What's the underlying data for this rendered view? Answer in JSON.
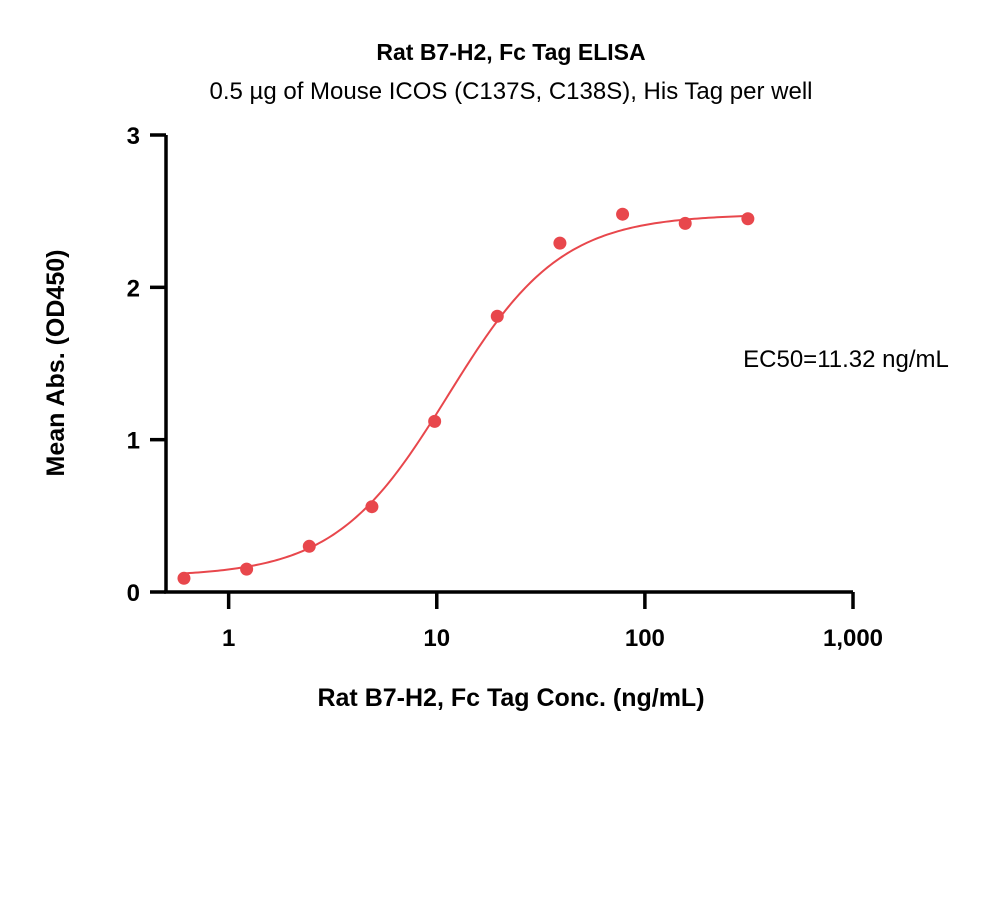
{
  "chart_data": {
    "type": "scatter",
    "title": "Rat B7-H2, Fc Tag ELISA",
    "subtitle": "0.5 µg of Mouse ICOS (C137S, C138S), His Tag per well",
    "xlabel": "Rat B7-H2, Fc Tag Conc. (ng/mL)",
    "ylabel": "Mean Abs. (OD450)",
    "x_scale": "log",
    "xlim": [
      0.5,
      1000
    ],
    "ylim": [
      0,
      3
    ],
    "x_ticks": [
      {
        "value": 1,
        "label": "1"
      },
      {
        "value": 10,
        "label": "10"
      },
      {
        "value": 100,
        "label": "100"
      },
      {
        "value": 1000,
        "label": "1,000"
      }
    ],
    "y_ticks": [
      {
        "value": 0,
        "label": "0"
      },
      {
        "value": 1,
        "label": "1"
      },
      {
        "value": 2,
        "label": "2"
      },
      {
        "value": 3,
        "label": "3"
      }
    ],
    "grid": false,
    "points": {
      "x": [
        0.61,
        1.22,
        2.44,
        4.88,
        9.77,
        19.53,
        39.06,
        78.13,
        156.25,
        312.5
      ],
      "y": [
        0.09,
        0.15,
        0.3,
        0.56,
        1.12,
        1.81,
        2.29,
        2.48,
        2.42,
        2.45
      ]
    },
    "fit": {
      "model": "4PL",
      "bottom": 0.1,
      "top": 2.48,
      "ec50": 11.32,
      "hill": 1.6
    },
    "annotation": "EC50=11.32 ng/mL",
    "colors": {
      "series": "#e8474c",
      "axis": "#000000"
    }
  }
}
